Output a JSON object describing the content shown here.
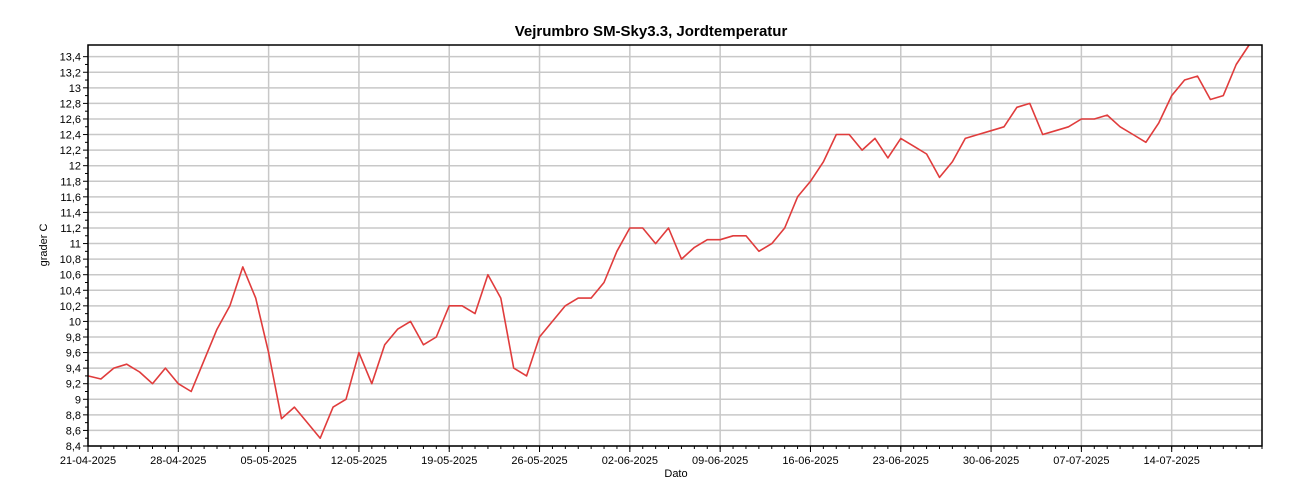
{
  "chart_data": {
    "type": "line",
    "title": "Vejrumbro SM-Sky3.3, Jordtemperatur",
    "xlabel": "Dato",
    "ylabel": "grader C",
    "x_tick_labels": [
      "21-04-2025",
      "28-04-2025",
      "05-05-2025",
      "12-05-2025",
      "19-05-2025",
      "26-05-2025",
      "02-06-2025",
      "09-06-2025",
      "16-06-2025",
      "23-06-2025",
      "30-06-2025",
      "07-07-2025",
      "14-07-2025"
    ],
    "y_tick_labels": [
      "8,4",
      "8,6",
      "8,8",
      "9",
      "9,2",
      "9,4",
      "9,6",
      "9,8",
      "10",
      "10,2",
      "10,4",
      "10,6",
      "10,8",
      "11",
      "11,2",
      "11,4",
      "11,6",
      "11,8",
      "12",
      "12,2",
      "12,4",
      "12,6",
      "12,8",
      "13",
      "13,2",
      "13,4"
    ],
    "xlim": [
      "2025-04-21",
      "2025-07-21"
    ],
    "ylim": [
      8.4,
      13.55
    ],
    "grid": true,
    "legend": "none",
    "line_color": "#e03c3c",
    "grid_color": "#c8c8c8",
    "series": [
      {
        "x": [
          "2025-04-21",
          "2025-04-22",
          "2025-04-23",
          "2025-04-24",
          "2025-04-25",
          "2025-04-26",
          "2025-04-27",
          "2025-04-28",
          "2025-04-29",
          "2025-04-30",
          "2025-05-01",
          "2025-05-02",
          "2025-05-03",
          "2025-05-04",
          "2025-05-05",
          "2025-05-06",
          "2025-05-07",
          "2025-05-08",
          "2025-05-09",
          "2025-05-10",
          "2025-05-11",
          "2025-05-12",
          "2025-05-13",
          "2025-05-14",
          "2025-05-15",
          "2025-05-16",
          "2025-05-17",
          "2025-05-18",
          "2025-05-19",
          "2025-05-20",
          "2025-05-21",
          "2025-05-22",
          "2025-05-23",
          "2025-05-24",
          "2025-05-25",
          "2025-05-26",
          "2025-05-27",
          "2025-05-28",
          "2025-05-29",
          "2025-05-30",
          "2025-05-31",
          "2025-06-01",
          "2025-06-02",
          "2025-06-03",
          "2025-06-04",
          "2025-06-05",
          "2025-06-06",
          "2025-06-07",
          "2025-06-08",
          "2025-06-09",
          "2025-06-10",
          "2025-06-11",
          "2025-06-12",
          "2025-06-13",
          "2025-06-14",
          "2025-06-15",
          "2025-06-16",
          "2025-06-17",
          "2025-06-18",
          "2025-06-19",
          "2025-06-20",
          "2025-06-21",
          "2025-06-22",
          "2025-06-23",
          "2025-06-24",
          "2025-06-25",
          "2025-06-26",
          "2025-06-27",
          "2025-06-28",
          "2025-06-29",
          "2025-06-30",
          "2025-07-01",
          "2025-07-02",
          "2025-07-03",
          "2025-07-04",
          "2025-07-05",
          "2025-07-06",
          "2025-07-07",
          "2025-07-08",
          "2025-07-09",
          "2025-07-10",
          "2025-07-11",
          "2025-07-12",
          "2025-07-13",
          "2025-07-14",
          "2025-07-15",
          "2025-07-16",
          "2025-07-17",
          "2025-07-18",
          "2025-07-19",
          "2025-07-20"
        ],
        "y": [
          9.3,
          9.26,
          9.4,
          9.45,
          9.35,
          9.2,
          9.4,
          9.2,
          9.1,
          9.5,
          9.9,
          10.2,
          10.7,
          10.3,
          9.6,
          8.75,
          8.9,
          8.7,
          8.5,
          8.9,
          9.0,
          9.6,
          9.2,
          9.7,
          9.9,
          10.0,
          9.7,
          9.8,
          10.2,
          10.2,
          10.1,
          10.6,
          10.3,
          9.4,
          9.3,
          9.8,
          10.0,
          10.2,
          10.3,
          10.3,
          10.5,
          10.9,
          11.2,
          11.2,
          11.0,
          11.2,
          10.8,
          10.95,
          11.05,
          11.05,
          11.1,
          11.1,
          10.9,
          11.0,
          11.2,
          11.6,
          11.8,
          12.05,
          12.4,
          12.4,
          12.2,
          12.35,
          12.1,
          12.35,
          12.25,
          12.15,
          11.85,
          12.05,
          12.35,
          12.4,
          12.45,
          12.5,
          12.75,
          12.8,
          12.4,
          12.45,
          12.5,
          12.6,
          12.6,
          12.65,
          12.5,
          12.4,
          12.3,
          12.55,
          12.9,
          13.1,
          13.15,
          12.85,
          12.9,
          13.3,
          13.55
        ]
      }
    ]
  }
}
